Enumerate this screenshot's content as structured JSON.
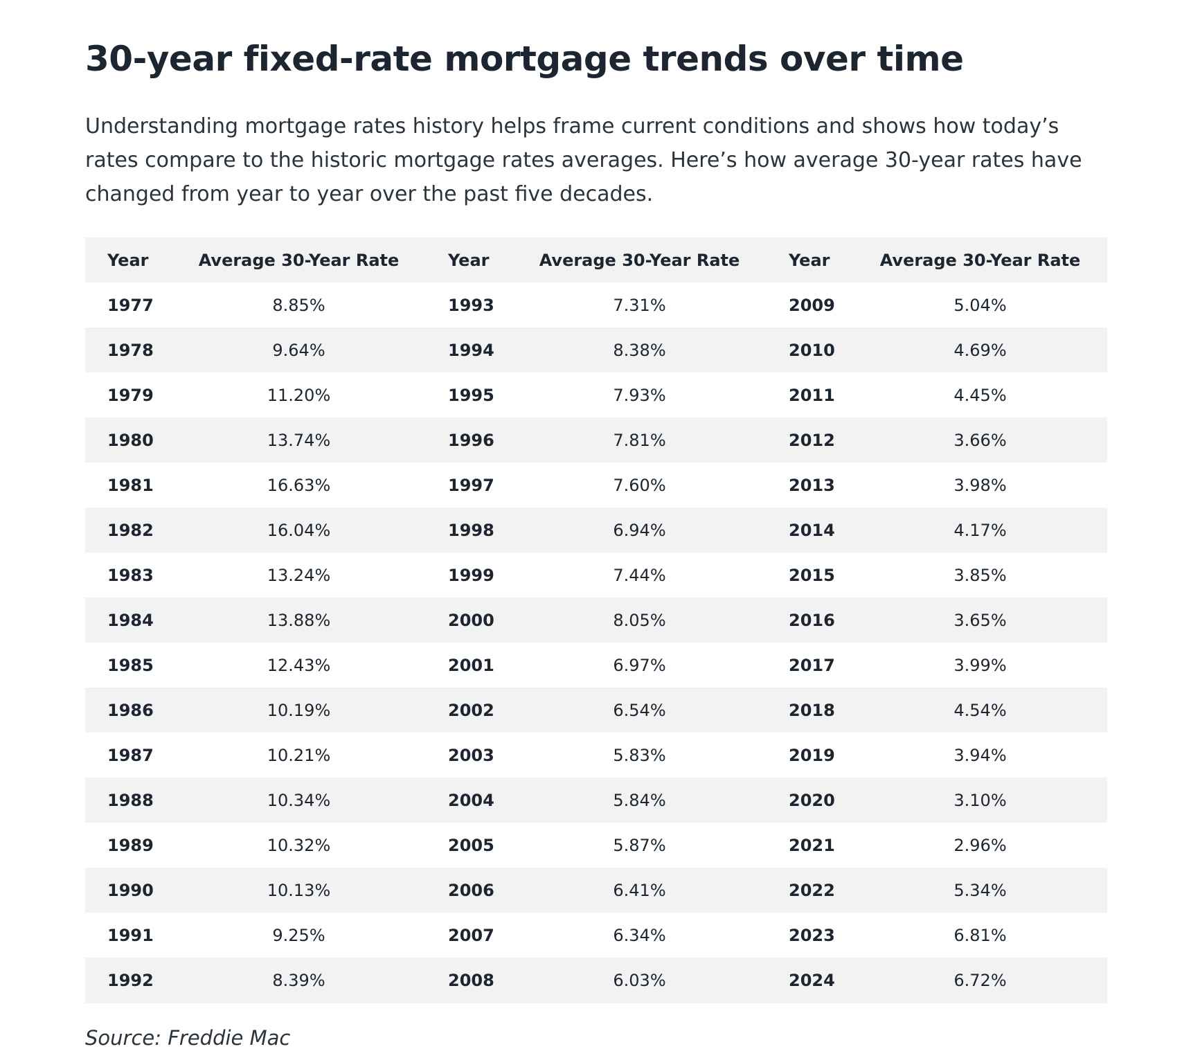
{
  "title": "30-year fixed-rate mortgage trends over time",
  "intro": "Understanding mortgage rates history helps frame current conditions and shows how today’s rates compare to the historic mortgage rates averages. Here’s how average 30-year rates have changed from year to year over the past five decades.",
  "table": {
    "headers": [
      "Year",
      "Average 30-Year Rate",
      "Year",
      "Average 30-Year Rate",
      "Year",
      "Average 30-Year Rate"
    ],
    "rows": [
      [
        "1977",
        "8.85%",
        "1993",
        "7.31%",
        "2009",
        "5.04%"
      ],
      [
        "1978",
        "9.64%",
        "1994",
        "8.38%",
        "2010",
        "4.69%"
      ],
      [
        "1979",
        "11.20%",
        "1995",
        "7.93%",
        "2011",
        "4.45%"
      ],
      [
        "1980",
        "13.74%",
        "1996",
        "7.81%",
        "2012",
        "3.66%"
      ],
      [
        "1981",
        "16.63%",
        "1997",
        "7.60%",
        "2013",
        "3.98%"
      ],
      [
        "1982",
        "16.04%",
        "1998",
        "6.94%",
        "2014",
        "4.17%"
      ],
      [
        "1983",
        "13.24%",
        "1999",
        "7.44%",
        "2015",
        "3.85%"
      ],
      [
        "1984",
        "13.88%",
        "2000",
        "8.05%",
        "2016",
        "3.65%"
      ],
      [
        "1985",
        "12.43%",
        "2001",
        "6.97%",
        "2017",
        "3.99%"
      ],
      [
        "1986",
        "10.19%",
        "2002",
        "6.54%",
        "2018",
        "4.54%"
      ],
      [
        "1987",
        "10.21%",
        "2003",
        "5.83%",
        "2019",
        "3.94%"
      ],
      [
        "1988",
        "10.34%",
        "2004",
        "5.84%",
        "2020",
        "3.10%"
      ],
      [
        "1989",
        "10.32%",
        "2005",
        "5.87%",
        "2021",
        "2.96%"
      ],
      [
        "1990",
        "10.13%",
        "2006",
        "6.41%",
        "2022",
        "5.34%"
      ],
      [
        "1991",
        "9.25%",
        "2007",
        "6.34%",
        "2023",
        "6.81%"
      ],
      [
        "1992",
        "8.39%",
        "2008",
        "6.03%",
        "2024",
        "6.72%"
      ]
    ]
  },
  "source": "Source: Freddie Mac",
  "colors": {
    "text": "#1c2530",
    "stripe": "#f2f2f2",
    "background": "#ffffff"
  }
}
